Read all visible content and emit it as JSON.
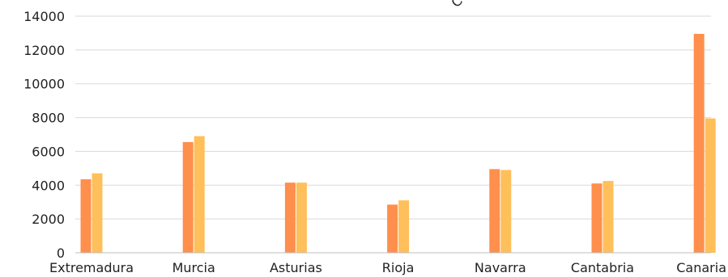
{
  "chart_data": {
    "type": "bar",
    "title": "",
    "xlabel": "",
    "ylabel": "",
    "ylim": [
      0,
      14000
    ],
    "yticks": [
      "0",
      "2000",
      "4000",
      "6000",
      "8000",
      "10000",
      "12000",
      "14000"
    ],
    "categories": [
      "Extremadura",
      "Murcia",
      "Asturias",
      "Rioja",
      "Navarra",
      "Cantabria",
      "Canaria"
    ],
    "series": [
      {
        "values": [
          4350,
          6550,
          4150,
          2850,
          4950,
          4100,
          12950
        ],
        "color": "#ff8f4d"
      },
      {
        "values": [
          4700,
          6900,
          4150,
          3100,
          4900,
          4250,
          7950
        ],
        "color": "#ffbf5a"
      }
    ],
    "grid": true,
    "legend": "none",
    "annotation": "Co"
  }
}
